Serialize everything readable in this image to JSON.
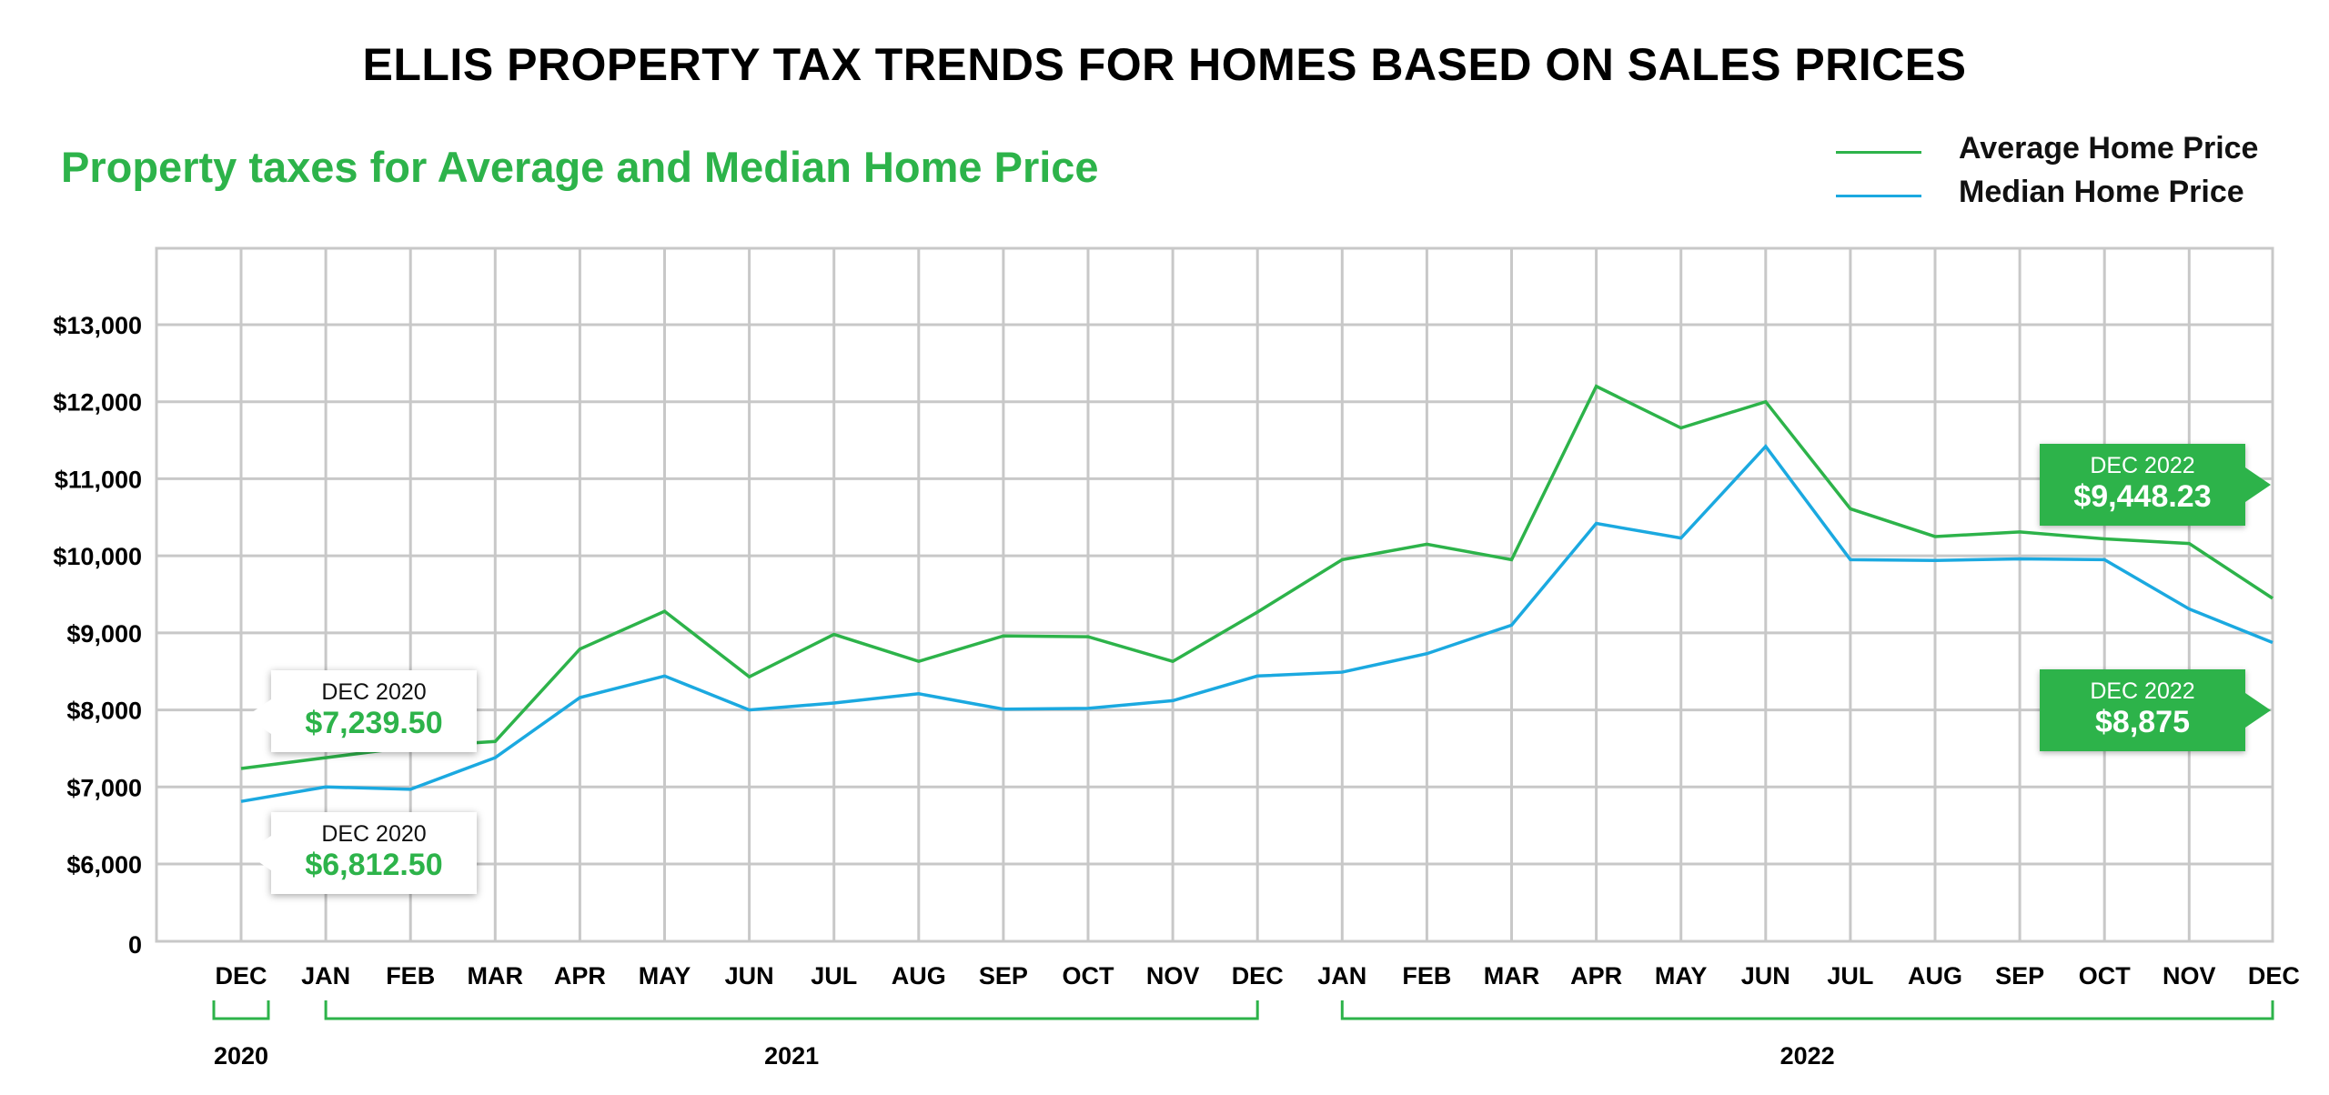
{
  "title": "ELLIS PROPERTY TAX TRENDS FOR HOMES BASED ON SALES PRICES",
  "subtitle": "Property taxes for Average and Median Home Price",
  "colors": {
    "average": "#2db34a",
    "median": "#1ba9e0",
    "grid": "#c8c8c8",
    "accent": "#2db34a"
  },
  "legend": [
    {
      "label": "Average Home Price",
      "color": "#2db34a"
    },
    {
      "label": "Median Home Price",
      "color": "#1ba9e0"
    }
  ],
  "chart_data": {
    "type": "line",
    "title": "ELLIS PROPERTY TAX TRENDS FOR HOMES BASED ON SALES PRICES",
    "subtitle": "Property taxes for Average and Median Home Price",
    "categories": [
      "DEC",
      "JAN",
      "FEB",
      "MAR",
      "APR",
      "MAY",
      "JUN",
      "JUL",
      "AUG",
      "SEP",
      "OCT",
      "NOV",
      "DEC",
      "JAN",
      "FEB",
      "MAR",
      "APR",
      "MAY",
      "JUN",
      "JUL",
      "AUG",
      "SEP",
      "OCT",
      "NOV",
      "DEC"
    ],
    "years": [
      {
        "label": "2020",
        "from": 0,
        "to": 0
      },
      {
        "label": "2021",
        "from": 1,
        "to": 12
      },
      {
        "label": "2022",
        "from": 13,
        "to": 24
      }
    ],
    "y_ticks": [
      0,
      6000,
      7000,
      8000,
      9000,
      10000,
      11000,
      12000,
      13000
    ],
    "y_tick_labels": [
      "0",
      "$6,000",
      "$7,000",
      "$8,000",
      "$9,000",
      "$10,000",
      "$11,000",
      "$12,000",
      "$13,000"
    ],
    "ylim": [
      5000,
      14000
    ],
    "axis_break": "zero shown below the $6,000 line",
    "grid": true,
    "legend_position": "top-right",
    "series": [
      {
        "name": "Average Home Price",
        "values": [
          7239.5,
          7380,
          7520,
          7590,
          8790,
          9280,
          8430,
          8980,
          8630,
          8960,
          8950,
          8630,
          9270,
          9950,
          10150,
          9950,
          12200,
          11660,
          12000,
          10610,
          10250,
          10310,
          10220,
          10160,
          9448.23
        ]
      },
      {
        "name": "Median Home Price",
        "values": [
          6812.5,
          7000,
          6970,
          7380,
          8160,
          8440,
          8000,
          8090,
          8210,
          8010,
          8020,
          8120,
          8440,
          8490,
          8730,
          9100,
          10420,
          10230,
          11420,
          9950,
          9940,
          9960,
          9950,
          9310,
          8875
        ]
      }
    ],
    "annotations": [
      {
        "period": "DEC 2020",
        "value": "$7,239.50",
        "series": "Average Home Price"
      },
      {
        "period": "DEC 2020",
        "value": "$6,812.50",
        "series": "Median Home Price"
      },
      {
        "period": "DEC 2022",
        "value": "$9,448.23",
        "series": "Average Home Price"
      },
      {
        "period": "DEC 2022",
        "value": "$8,875",
        "series": "Median Home Price"
      }
    ]
  }
}
